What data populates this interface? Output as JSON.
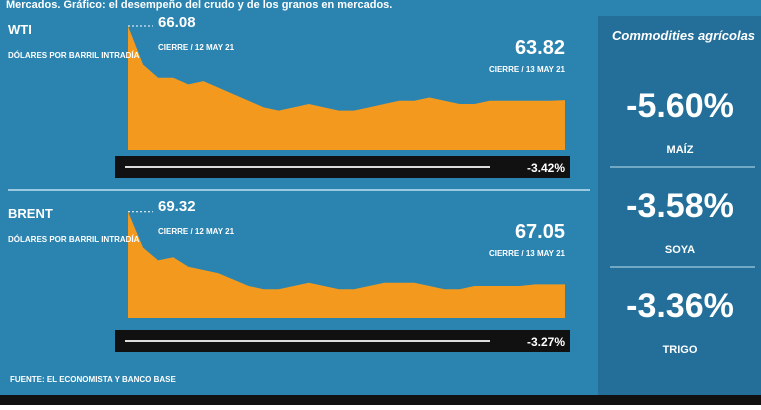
{
  "header": {
    "title": "Mercados. Gráfico: el desempeño del crudo y de los granos en mercados."
  },
  "chart_data": [
    {
      "type": "area",
      "title": "WTI",
      "subtitle": "DÓLARES POR BARRIL INTRADÍA",
      "color": "#f39a1e",
      "open_note": "CIERRE / 12 MAY 21",
      "close_note": "CIERRE / 13 MAY 21",
      "change": "-3.42%",
      "values": [
        66.08,
        64.9,
        64.5,
        64.5,
        64.3,
        64.4,
        64.2,
        64.0,
        63.8,
        63.6,
        63.5,
        63.6,
        63.7,
        63.6,
        63.5,
        63.5,
        63.6,
        63.7,
        63.8,
        63.8,
        63.9,
        63.8,
        63.7,
        63.7,
        63.8,
        63.8,
        63.8,
        63.8,
        63.8,
        63.82
      ],
      "ylim": [
        62.3,
        66.2
      ]
    },
    {
      "type": "area",
      "title": "BRENT",
      "subtitle": "DÓLARES POR BARRIL INTRADÍA",
      "color": "#f39a1e",
      "open_note": "CIERRE / 12 MAY 21",
      "close_note": "CIERRE / 13 MAY 21",
      "change": "-3.27%",
      "values": [
        69.32,
        68.2,
        67.8,
        67.9,
        67.6,
        67.5,
        67.4,
        67.2,
        67.0,
        66.9,
        66.9,
        67.0,
        67.1,
        67.0,
        66.9,
        66.9,
        67.0,
        67.1,
        67.1,
        67.1,
        67.0,
        66.9,
        66.9,
        67.0,
        67.0,
        67.0,
        67.0,
        67.05,
        67.05,
        67.05
      ],
      "ylim": [
        66.0,
        69.5
      ]
    }
  ],
  "commodities": {
    "title": "Commodities agrícolas",
    "items": [
      {
        "value": "-5.60%",
        "name": "MAÍZ"
      },
      {
        "value": "-3.58%",
        "name": "SOYA"
      },
      {
        "value": "-3.36%",
        "name": "TRIGO"
      }
    ]
  },
  "source": "FUENTE: EL ECONOMISTA Y BANCO BASE"
}
